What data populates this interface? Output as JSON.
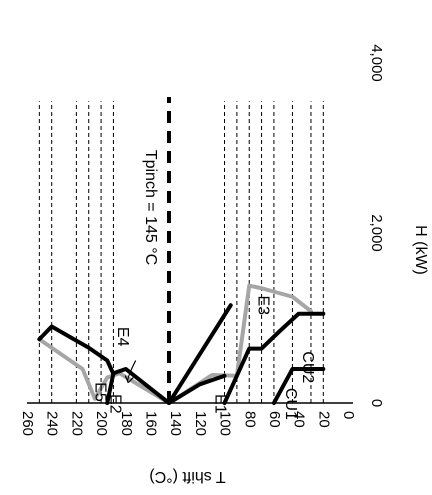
{
  "chart_data": {
    "type": "line",
    "rotation": "rotated 90 degrees clockwise (H axis vertical on right, T shift axis horizontal at bottom, printed sideways)",
    "xlabel": "T shift (°C)",
    "ylabel": "H (kW)",
    "xlim": [
      0,
      260
    ],
    "ylim": [
      0,
      4000
    ],
    "x_ticks": [
      "260",
      "240",
      "220",
      "200",
      "180",
      "160",
      "140",
      "120",
      "100",
      "80",
      "60",
      "40",
      "20",
      "0"
    ],
    "y_ticks": [
      "0",
      "2,000",
      "4,000"
    ],
    "interval_lines_T": [
      250,
      240,
      220,
      210,
      200,
      190,
      100,
      90,
      80,
      70,
      60,
      45,
      30,
      20
    ],
    "pinch": {
      "T": 145,
      "label": "Tpinch = 145 °C"
    },
    "series": [
      {
        "name": "E1",
        "color": "#000000",
        "x": [
          145,
          95
        ],
        "y": [
          0,
          1150
        ]
      },
      {
        "name": "E2",
        "color": "#000000",
        "x": [
          195,
          190,
          180,
          145,
          120,
          100
        ],
        "y": [
          0,
          350,
          400,
          0,
          220,
          320
        ]
      },
      {
        "name": "E3",
        "color": "#000000",
        "x": [
          100,
          80,
          70,
          55,
          40,
          30,
          20
        ],
        "y": [
          0,
          640,
          640,
          850,
          1050,
          1050,
          1050
        ]
      },
      {
        "name": "E4",
        "color": "#a6a6a6",
        "x": [
          250,
          215,
          205,
          195,
          185,
          145,
          110,
          90,
          80,
          70,
          45,
          30
        ],
        "y": [
          750,
          400,
          50,
          300,
          350,
          0,
          330,
          320,
          1380,
          1350,
          1250,
          1080
        ]
      },
      {
        "name": "E5",
        "color": "#000000",
        "x": [
          250,
          240,
          210,
          195,
          190
        ],
        "y": [
          750,
          900,
          650,
          500,
          340
        ]
      },
      {
        "name": "CU1",
        "color": "#000000",
        "x": [
          60,
          45,
          40,
          20
        ],
        "y": [
          0,
          400,
          400,
          400
        ]
      }
    ],
    "annotations": [
      "E1",
      "E2",
      "E3",
      "E4",
      "E5",
      "CU1",
      "CU2"
    ]
  }
}
